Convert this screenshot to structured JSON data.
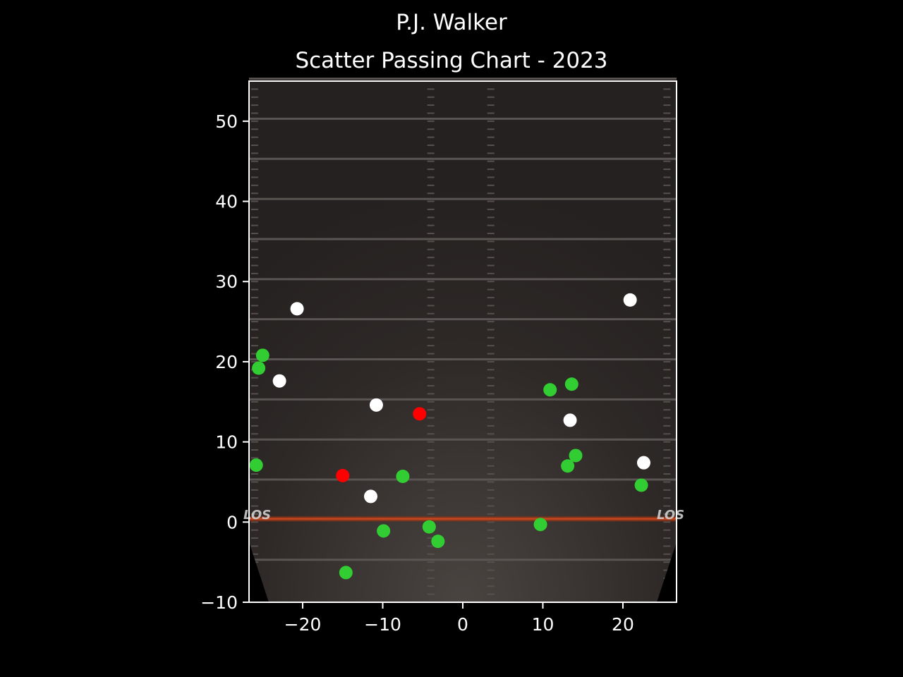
{
  "header": {
    "title": "P.J. Walker",
    "subtitle": "Scatter Passing Chart - 2023"
  },
  "field": {
    "los_label": "LOS",
    "los_color": "#c0391a",
    "turf_color": "#2b2624"
  },
  "chart_data": {
    "type": "scatter",
    "title": "Scatter Passing Chart - 2023",
    "xlabel": "",
    "ylabel": "",
    "xlim": [
      -26.7,
      26.7
    ],
    "ylim": [
      -10,
      55
    ],
    "xticks": [
      -20,
      -10,
      0,
      10,
      20
    ],
    "yticks": [
      -10,
      0,
      10,
      20,
      30,
      40,
      50
    ],
    "xtick_labels": [
      "−20",
      "−10",
      "0",
      "10",
      "20"
    ],
    "ytick_labels": [
      "−10",
      "0",
      "10",
      "20",
      "30",
      "40",
      "50"
    ],
    "grid": false,
    "legend": "none",
    "series": [
      {
        "color": "#32cd32",
        "points": [
          {
            "x": -25,
            "y": 20.8
          },
          {
            "x": -25.5,
            "y": 19.2
          },
          {
            "x": -25.8,
            "y": 7.1
          },
          {
            "x": -7.5,
            "y": 5.7
          },
          {
            "x": -9.9,
            "y": -1.1
          },
          {
            "x": -4.2,
            "y": -0.6
          },
          {
            "x": -3.1,
            "y": -2.4
          },
          {
            "x": -14.6,
            "y": -6.3
          },
          {
            "x": 10.9,
            "y": 16.5
          },
          {
            "x": 13.6,
            "y": 17.2
          },
          {
            "x": 14.1,
            "y": 8.3
          },
          {
            "x": 13.1,
            "y": 7.0
          },
          {
            "x": 22.3,
            "y": 4.6
          },
          {
            "x": 9.7,
            "y": -0.3
          }
        ]
      },
      {
        "color": "#ffffff",
        "points": [
          {
            "x": -20.7,
            "y": 26.6
          },
          {
            "x": -22.9,
            "y": 17.6
          },
          {
            "x": -10.8,
            "y": 14.6
          },
          {
            "x": -11.5,
            "y": 3.2
          },
          {
            "x": 20.9,
            "y": 27.7
          },
          {
            "x": 13.4,
            "y": 12.7
          },
          {
            "x": 22.6,
            "y": 7.4
          }
        ]
      },
      {
        "color": "#ff0000",
        "points": [
          {
            "x": -5.4,
            "y": 13.5
          },
          {
            "x": -15,
            "y": 5.8
          }
        ]
      }
    ]
  }
}
